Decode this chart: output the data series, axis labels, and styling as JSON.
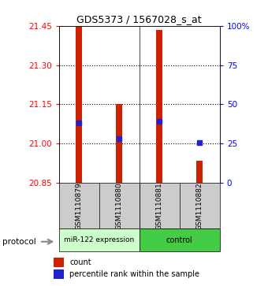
{
  "title": "GDS5373 / 1567028_s_at",
  "samples": [
    "GSM1110879",
    "GSM1110880",
    "GSM1110881",
    "GSM1110882"
  ],
  "bar_bottoms": [
    20.85,
    20.85,
    20.85,
    20.85
  ],
  "bar_tops": [
    21.45,
    21.15,
    21.435,
    20.935
  ],
  "percentile_values": [
    21.08,
    21.02,
    21.085,
    21.005
  ],
  "ymin": 20.85,
  "ymax": 21.45,
  "yticks_left": [
    20.85,
    21.0,
    21.15,
    21.3,
    21.45
  ],
  "yticks_right": [
    0,
    25,
    50,
    75,
    100
  ],
  "bar_color": "#cc2200",
  "blue_color": "#2222cc",
  "group1_label": "miR-122 expression",
  "group2_label": "control",
  "group1_color": "#ccffcc",
  "group2_color": "#44cc44",
  "legend_count_label": "count",
  "legend_pct_label": "percentile rank within the sample",
  "protocol_label": "protocol",
  "sample_bg_color": "#cccccc",
  "bar_width": 0.15
}
